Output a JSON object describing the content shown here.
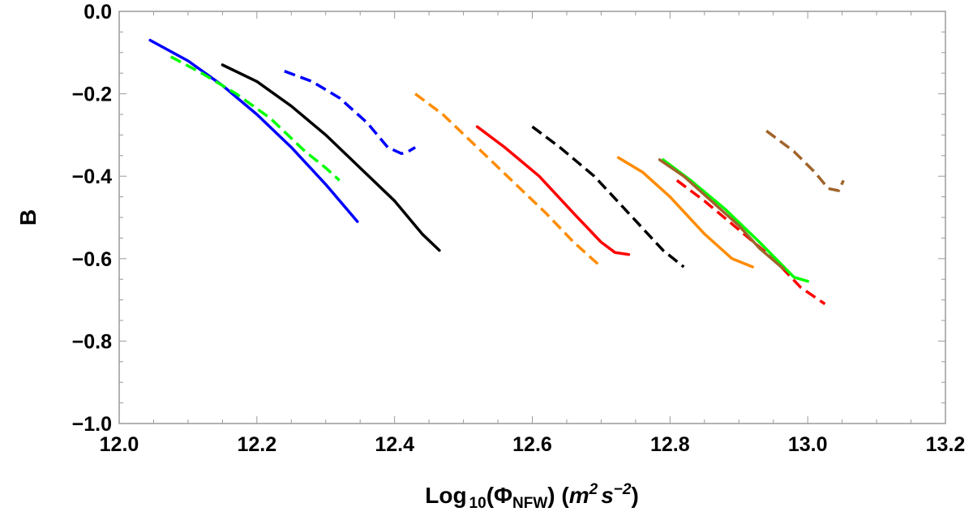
{
  "chart_data": {
    "type": "line",
    "title": "",
    "xlim": [
      12.0,
      13.2
    ],
    "ylim": [
      -1.0,
      0.0
    ],
    "x_ticks": [
      12.0,
      12.2,
      12.4,
      12.6,
      12.8,
      13.0,
      13.2
    ],
    "y_ticks": [
      0.0,
      -0.2,
      -0.4,
      -0.6,
      -0.8,
      -1.0
    ],
    "x_tick_labels": [
      "12.0",
      "12.2",
      "12.4",
      "12.6",
      "12.8",
      "13.0",
      "13.2"
    ],
    "y_tick_labels": [
      "0.0",
      "−0.2",
      "−0.4",
      "−0.6",
      "−0.8",
      "−1.0"
    ],
    "xlabel": {
      "prefix": "Log",
      "sub1": "10",
      "open": "(Φ",
      "sub2": "NFW",
      "close": ") (",
      "m": "m",
      "sup1": "2",
      "s": "s",
      "sup2": "−2",
      "end": ")"
    },
    "ylabel": "B",
    "grid": false,
    "legend": "none",
    "series": [
      {
        "color": "#0000ff",
        "dash": "solid",
        "x": [
          12.045,
          12.1,
          12.15,
          12.2,
          12.25,
          12.3,
          12.346
        ],
        "y": [
          -0.07,
          -0.12,
          -0.18,
          -0.25,
          -0.33,
          -0.42,
          -0.51
        ]
      },
      {
        "color": "#00ff00",
        "dash": "dashed",
        "x": [
          12.075,
          12.12,
          12.17,
          12.22,
          12.27,
          12.3,
          12.32
        ],
        "y": [
          -0.11,
          -0.15,
          -0.2,
          -0.26,
          -0.34,
          -0.38,
          -0.41
        ]
      },
      {
        "color": "#000000",
        "dash": "solid",
        "x": [
          12.15,
          12.2,
          12.25,
          12.3,
          12.35,
          12.4,
          12.44,
          12.465
        ],
        "y": [
          -0.13,
          -0.17,
          -0.23,
          -0.3,
          -0.38,
          -0.46,
          -0.54,
          -0.58
        ]
      },
      {
        "color": "#0000ff",
        "dash": "dashed",
        "x": [
          12.24,
          12.28,
          12.32,
          12.36,
          12.39,
          12.41,
          12.42,
          12.43
        ],
        "y": [
          -0.145,
          -0.17,
          -0.21,
          -0.27,
          -0.33,
          -0.345,
          -0.34,
          -0.33
        ]
      },
      {
        "color": "#ff8c00",
        "dash": "dashed",
        "x": [
          12.43,
          12.47,
          12.52,
          12.57,
          12.62,
          12.66,
          12.7
        ],
        "y": [
          -0.2,
          -0.25,
          -0.33,
          -0.41,
          -0.49,
          -0.56,
          -0.62
        ]
      },
      {
        "color": "#ff0000",
        "dash": "solid",
        "x": [
          12.52,
          12.56,
          12.61,
          12.66,
          12.7,
          12.72,
          12.74
        ],
        "y": [
          -0.28,
          -0.33,
          -0.4,
          -0.49,
          -0.56,
          -0.585,
          -0.59
        ]
      },
      {
        "color": "#000000",
        "dash": "dashed",
        "x": [
          12.6,
          12.64,
          12.69,
          12.74,
          12.79,
          12.82
        ],
        "y": [
          -0.28,
          -0.33,
          -0.4,
          -0.49,
          -0.58,
          -0.62
        ]
      },
      {
        "color": "#ff8c00",
        "dash": "solid",
        "x": [
          12.725,
          12.76,
          12.8,
          12.85,
          12.89,
          12.92
        ],
        "y": [
          -0.355,
          -0.39,
          -0.45,
          -0.54,
          -0.6,
          -0.62
        ]
      },
      {
        "color": "#ff0000",
        "dash": "dashed",
        "x": [
          12.81,
          12.85,
          12.9,
          12.95,
          12.99,
          13.025
        ],
        "y": [
          -0.41,
          -0.46,
          -0.53,
          -0.6,
          -0.67,
          -0.71
        ]
      },
      {
        "color": "#00ff00",
        "dash": "solid",
        "x": [
          12.79,
          12.83,
          12.88,
          12.93,
          12.98,
          13.0
        ],
        "y": [
          -0.36,
          -0.41,
          -0.48,
          -0.56,
          -0.645,
          -0.655
        ]
      },
      {
        "color": "#a0632a",
        "dash": "solid",
        "x": [
          12.785,
          12.82,
          12.86,
          12.9,
          12.93,
          12.965
        ],
        "y": [
          -0.36,
          -0.4,
          -0.46,
          -0.52,
          -0.575,
          -0.625
        ]
      },
      {
        "color": "#a0632a",
        "dash": "dashed",
        "x": [
          12.94,
          12.98,
          13.01,
          13.03,
          13.045,
          13.052
        ],
        "y": [
          -0.29,
          -0.34,
          -0.39,
          -0.43,
          -0.435,
          -0.41
        ]
      }
    ]
  }
}
